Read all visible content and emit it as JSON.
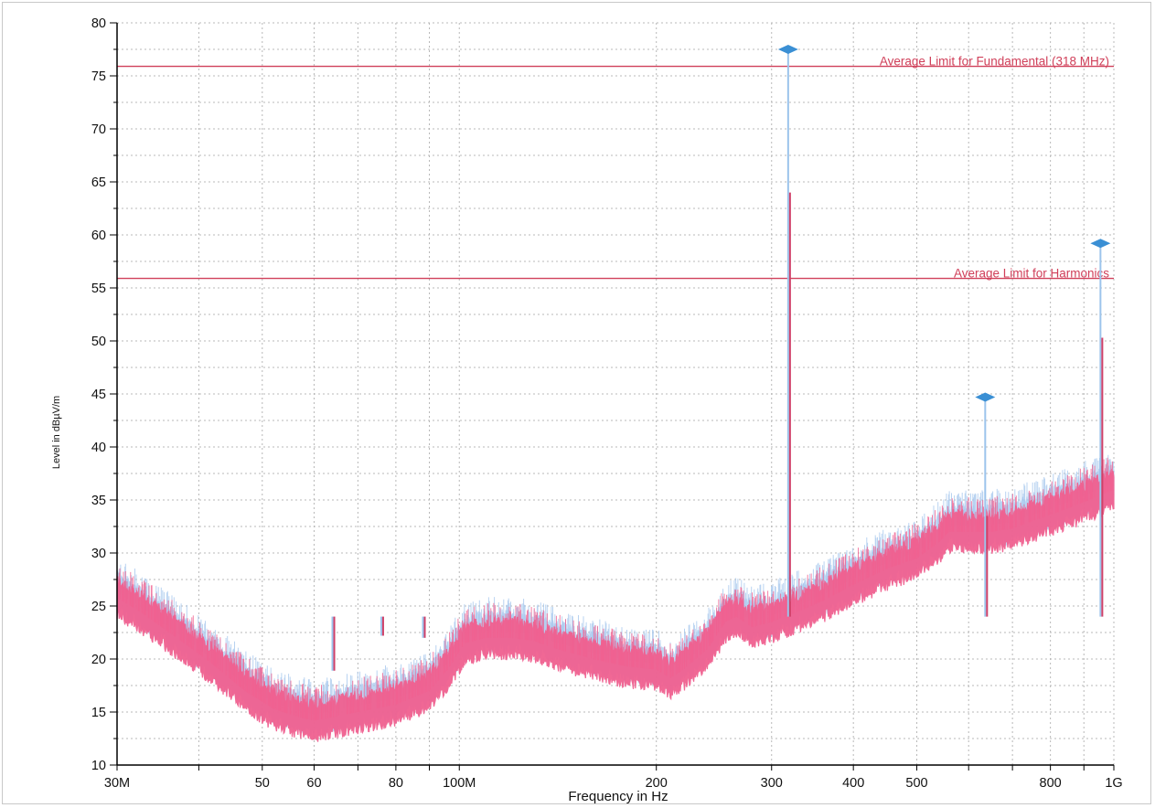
{
  "chart_data": {
    "type": "line",
    "title": "",
    "xlabel": "Frequency in Hz",
    "ylabel": "Level in dBµV/m",
    "x_scale": "log",
    "xlim_hz": [
      30000000,
      1000000000
    ],
    "ylim": [
      10,
      80
    ],
    "y_ticks": [
      10,
      15,
      20,
      25,
      30,
      35,
      40,
      45,
      50,
      55,
      60,
      65,
      70,
      75,
      80
    ],
    "x_ticks": [
      {
        "hz": 30000000,
        "label": "30M"
      },
      {
        "hz": 50000000,
        "label": "50"
      },
      {
        "hz": 60000000,
        "label": "60"
      },
      {
        "hz": 80000000,
        "label": "80"
      },
      {
        "hz": 100000000,
        "label": "100M"
      },
      {
        "hz": 200000000,
        "label": "200"
      },
      {
        "hz": 300000000,
        "label": "300"
      },
      {
        "hz": 400000000,
        "label": "400"
      },
      {
        "hz": 500000000,
        "label": "500"
      },
      {
        "hz": 800000000,
        "label": "800"
      },
      {
        "hz": 1000000000,
        "label": "1G"
      }
    ],
    "grid": true,
    "limit_lines": [
      {
        "label": "Average Limit for Fundamental (318 MHz)",
        "value": 75.9,
        "color": "#d0405a"
      },
      {
        "label": "Average Limit for Harmonics",
        "value": 55.9,
        "color": "#d0405a"
      }
    ],
    "markers": [
      {
        "x_hz": 318000000,
        "y": 77.5
      },
      {
        "x_hz": 636000000,
        "y": 44.7
      },
      {
        "x_hz": 954000000,
        "y": 59.2
      }
    ],
    "spikes": [
      {
        "x_hz": 318000000,
        "peak": 77.5,
        "avg": 64.0
      },
      {
        "x_hz": 636000000,
        "peak": 44.7,
        "avg": 33.5
      },
      {
        "x_hz": 954000000,
        "peak": 59.2,
        "avg": 50.3
      },
      {
        "x_hz": 64000000,
        "peak": 18.9,
        "avg": 18.9
      },
      {
        "x_hz": 76000000,
        "peak": 22.2,
        "avg": 22.2
      },
      {
        "x_hz": 88000000,
        "peak": 22.0,
        "avg": 22.0
      }
    ],
    "series": [
      {
        "color": "#f06090",
        "x_hz": [
          30000000,
          33000000,
          37000000,
          42000000,
          47000000,
          52000000,
          57000000,
          60000000,
          64000000,
          70000000,
          80000000,
          90000000,
          96000000,
          102000000,
          110000000,
          120000000,
          130000000,
          140000000,
          160000000,
          180000000,
          200000000,
          210000000,
          220000000,
          240000000,
          255000000,
          265000000,
          280000000,
          300000000,
          330000000,
          360000000,
          400000000,
          450000000,
          500000000,
          540000000,
          560000000,
          600000000,
          650000000,
          700000000,
          750000000,
          800000000,
          850000000,
          900000000,
          950000000,
          1000000000
        ],
        "level": [
          25.8,
          24.2,
          22.0,
          19.5,
          17.0,
          15.3,
          14.5,
          14.2,
          14.5,
          15.0,
          15.7,
          17.0,
          19.0,
          21.5,
          22.0,
          22.0,
          21.7,
          21.0,
          20.0,
          19.3,
          19.0,
          18.2,
          19.0,
          21.0,
          23.5,
          24.0,
          23.0,
          23.5,
          24.5,
          25.5,
          27.0,
          28.5,
          29.5,
          31.0,
          32.0,
          32.0,
          32.0,
          32.3,
          33.0,
          33.6,
          34.2,
          34.8,
          35.4,
          36.0
        ]
      },
      {
        "color": "#a8c8ee",
        "x_hz": [
          30000000,
          33000000,
          37000000,
          42000000,
          47000000,
          52000000,
          57000000,
          60000000,
          64000000,
          70000000,
          80000000,
          90000000,
          96000000,
          102000000,
          110000000,
          120000000,
          130000000,
          140000000,
          160000000,
          180000000,
          200000000,
          210000000,
          220000000,
          240000000,
          255000000,
          265000000,
          280000000,
          300000000,
          330000000,
          360000000,
          400000000,
          450000000,
          500000000,
          540000000,
          560000000,
          600000000,
          650000000,
          700000000,
          750000000,
          800000000,
          850000000,
          900000000,
          950000000,
          1000000000
        ],
        "level": [
          26.3,
          24.7,
          22.5,
          20.0,
          17.6,
          15.9,
          15.1,
          14.8,
          15.1,
          15.6,
          16.3,
          17.6,
          19.6,
          22.0,
          22.6,
          22.6,
          22.3,
          21.6,
          20.6,
          19.9,
          19.6,
          18.8,
          19.6,
          21.6,
          24.0,
          24.6,
          23.6,
          24.1,
          25.1,
          26.1,
          27.6,
          29.1,
          30.1,
          31.6,
          32.6,
          32.6,
          32.7,
          32.9,
          33.6,
          34.2,
          34.8,
          35.4,
          36.0,
          36.6
        ]
      }
    ]
  }
}
